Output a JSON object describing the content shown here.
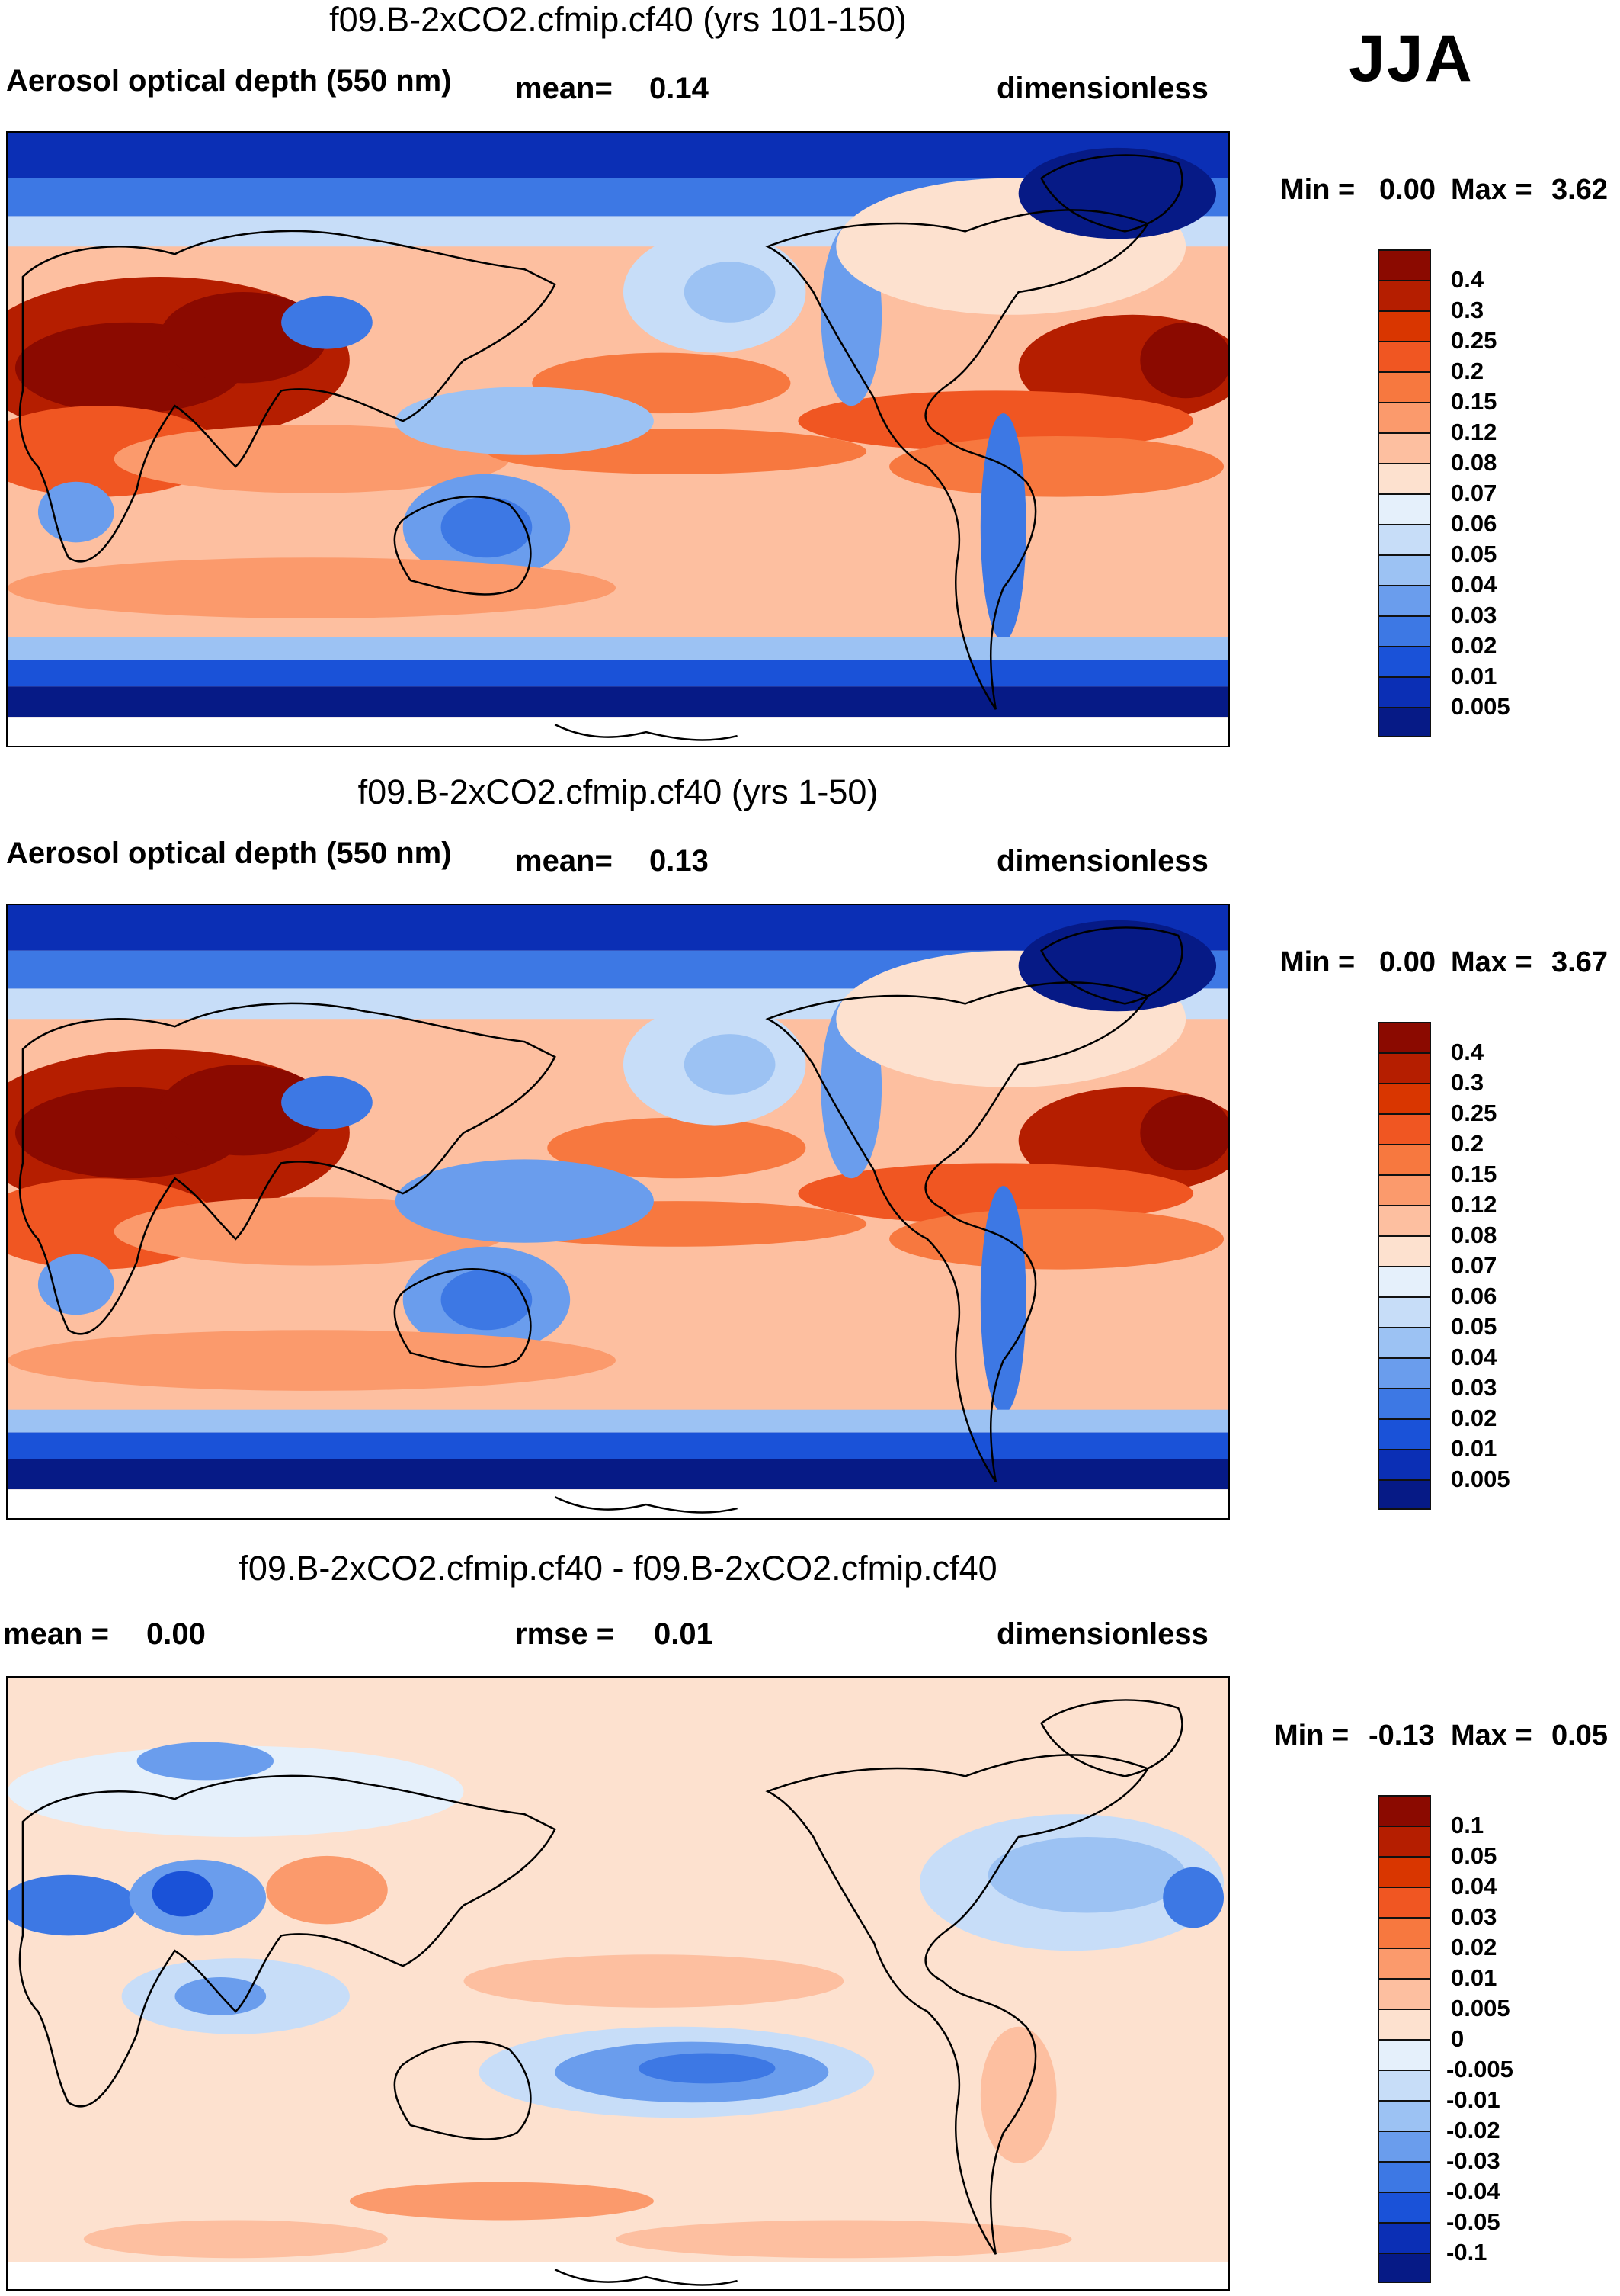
{
  "season": "JJA",
  "panels": [
    {
      "title": "f09.B-2xCO2.cfmip.cf40 (yrs 101-150)",
      "variable": "Aerosol optical depth (550 nm)",
      "mean_label": "mean=",
      "mean_value": "0.14",
      "units": "dimensionless",
      "min_label": "Min =",
      "min_value": "0.00",
      "max_label": "Max =",
      "max_value": "3.62"
    },
    {
      "title": "f09.B-2xCO2.cfmip.cf40 (yrs 1-50)",
      "variable": "Aerosol optical depth (550 nm)",
      "mean_label": "mean=",
      "mean_value": "0.13",
      "units": "dimensionless",
      "min_label": "Min =",
      "min_value": "0.00",
      "max_label": "Max =",
      "max_value": "3.67"
    },
    {
      "title": "f09.B-2xCO2.cfmip.cf40 - f09.B-2xCO2.cfmip.cf40",
      "mean_label": "mean =",
      "mean_value": "0.00",
      "rmse_label": "rmse =",
      "rmse_value": "0.01",
      "units": "dimensionless",
      "min_label": "Min =",
      "min_value": "-0.13",
      "max_label": "Max =",
      "max_value": "0.05"
    }
  ],
  "colorbars": {
    "aod": {
      "labels": [
        "0.4",
        "0.3",
        "0.25",
        "0.2",
        "0.15",
        "0.12",
        "0.08",
        "0.07",
        "0.06",
        "0.05",
        "0.04",
        "0.03",
        "0.02",
        "0.01",
        "0.005"
      ],
      "colors": [
        "#8b0a00",
        "#b51e00",
        "#d93600",
        "#f05622",
        "#f7783f",
        "#fb9a6c",
        "#fdbfa0",
        "#fde1cf",
        "#e5f0fb",
        "#c7ddf8",
        "#9cc2f3",
        "#6a9ded",
        "#3d78e4",
        "#1a52d8",
        "#0b2fb5",
        "#061a86"
      ]
    },
    "diff": {
      "labels": [
        "0.1",
        "0.05",
        "0.04",
        "0.03",
        "0.02",
        "0.01",
        "0.005",
        "0",
        "-0.005",
        "-0.01",
        "-0.02",
        "-0.03",
        "-0.04",
        "-0.05",
        "-0.1"
      ],
      "colors": [
        "#8b0a00",
        "#b51e00",
        "#d93600",
        "#f05622",
        "#f7783f",
        "#fb9a6c",
        "#fdbfa0",
        "#fde1cf",
        "#e5f0fb",
        "#c7ddf8",
        "#9cc2f3",
        "#6a9ded",
        "#3d78e4",
        "#1a52d8",
        "#0b2fb5",
        "#061a86"
      ]
    }
  },
  "chart_data": [
    {
      "type": "heatmap",
      "title": "f09.B-2xCO2.cfmip.cf40 (yrs 101-150)",
      "variable": "Aerosol optical depth (550 nm)",
      "units": "dimensionless",
      "mean": 0.14,
      "min": 0.0,
      "max": 3.62,
      "levels": [
        0.005,
        0.01,
        0.02,
        0.03,
        0.04,
        0.05,
        0.06,
        0.07,
        0.08,
        0.12,
        0.15,
        0.2,
        0.25,
        0.3,
        0.4
      ]
    },
    {
      "type": "heatmap",
      "title": "f09.B-2xCO2.cfmip.cf40 (yrs 1-50)",
      "variable": "Aerosol optical depth (550 nm)",
      "units": "dimensionless",
      "mean": 0.13,
      "min": 0.0,
      "max": 3.67,
      "levels": [
        0.005,
        0.01,
        0.02,
        0.03,
        0.04,
        0.05,
        0.06,
        0.07,
        0.08,
        0.12,
        0.15,
        0.2,
        0.25,
        0.3,
        0.4
      ]
    },
    {
      "type": "heatmap",
      "title": "f09.B-2xCO2.cfmip.cf40 - f09.B-2xCO2.cfmip.cf40",
      "units": "dimensionless",
      "mean": 0.0,
      "rmse": 0.01,
      "min": -0.13,
      "max": 0.05,
      "levels": [
        -0.1,
        -0.05,
        -0.04,
        -0.03,
        -0.02,
        -0.01,
        -0.005,
        0,
        0.005,
        0.01,
        0.02,
        0.03,
        0.04,
        0.05,
        0.1
      ]
    }
  ]
}
